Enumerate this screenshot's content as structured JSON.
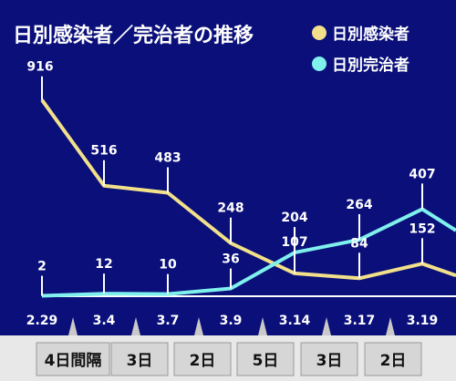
{
  "chart_data": {
    "type": "line",
    "title": "日別感染者／完治者の推移",
    "categories": [
      "2.29",
      "3.4",
      "3.7",
      "3.9",
      "3.14",
      "3.17",
      "3.19",
      ""
    ],
    "series": [
      {
        "name": "日別感染者",
        "color": "#f2e08a",
        "values": [
          916,
          516,
          483,
          248,
          107,
          84,
          152,
          97
        ]
      },
      {
        "name": "日別完治者",
        "color": "#7ff0ec",
        "values": [
          2,
          12,
          10,
          36,
          204,
          264,
          407,
          307
        ]
      }
    ],
    "data_labels": {
      "日別感染者": [
        "916",
        "516",
        "483",
        "248",
        "107",
        "84",
        "152",
        ""
      ],
      "日別完治者": [
        "2",
        "12",
        "10",
        "36",
        "204",
        "264",
        "407",
        ""
      ]
    },
    "interval_labels": [
      "4日間隔",
      "3日",
      "2日",
      "5日",
      "3日",
      "2日"
    ],
    "legend_position": "top-right",
    "grid": false,
    "ylim": [
      0,
      1000
    ]
  },
  "colors": {
    "background": "#0a0f7a",
    "axis": "#ffffff",
    "gap_bar": "#d6d6d6"
  }
}
